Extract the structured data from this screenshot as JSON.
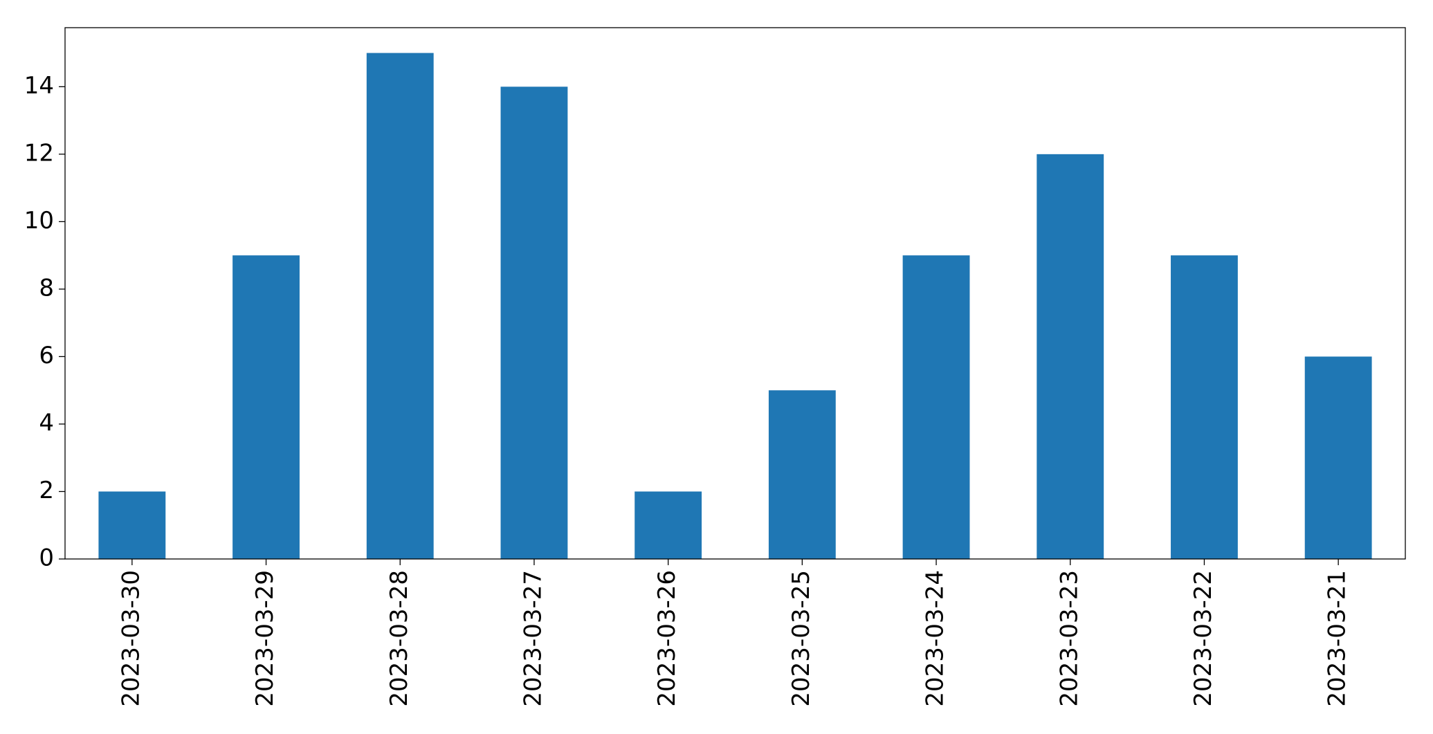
{
  "chart_data": {
    "type": "bar",
    "categories": [
      "2023-03-30",
      "2023-03-29",
      "2023-03-28",
      "2023-03-27",
      "2023-03-26",
      "2023-03-25",
      "2023-03-24",
      "2023-03-23",
      "2023-03-22",
      "2023-03-21"
    ],
    "values": [
      2,
      9,
      15,
      14,
      2,
      5,
      9,
      12,
      9,
      6
    ],
    "color": "#1f77b4",
    "ylim": [
      0,
      15.75
    ],
    "yticks": [
      0,
      2,
      4,
      6,
      8,
      10,
      12,
      14
    ],
    "grid": false
  }
}
